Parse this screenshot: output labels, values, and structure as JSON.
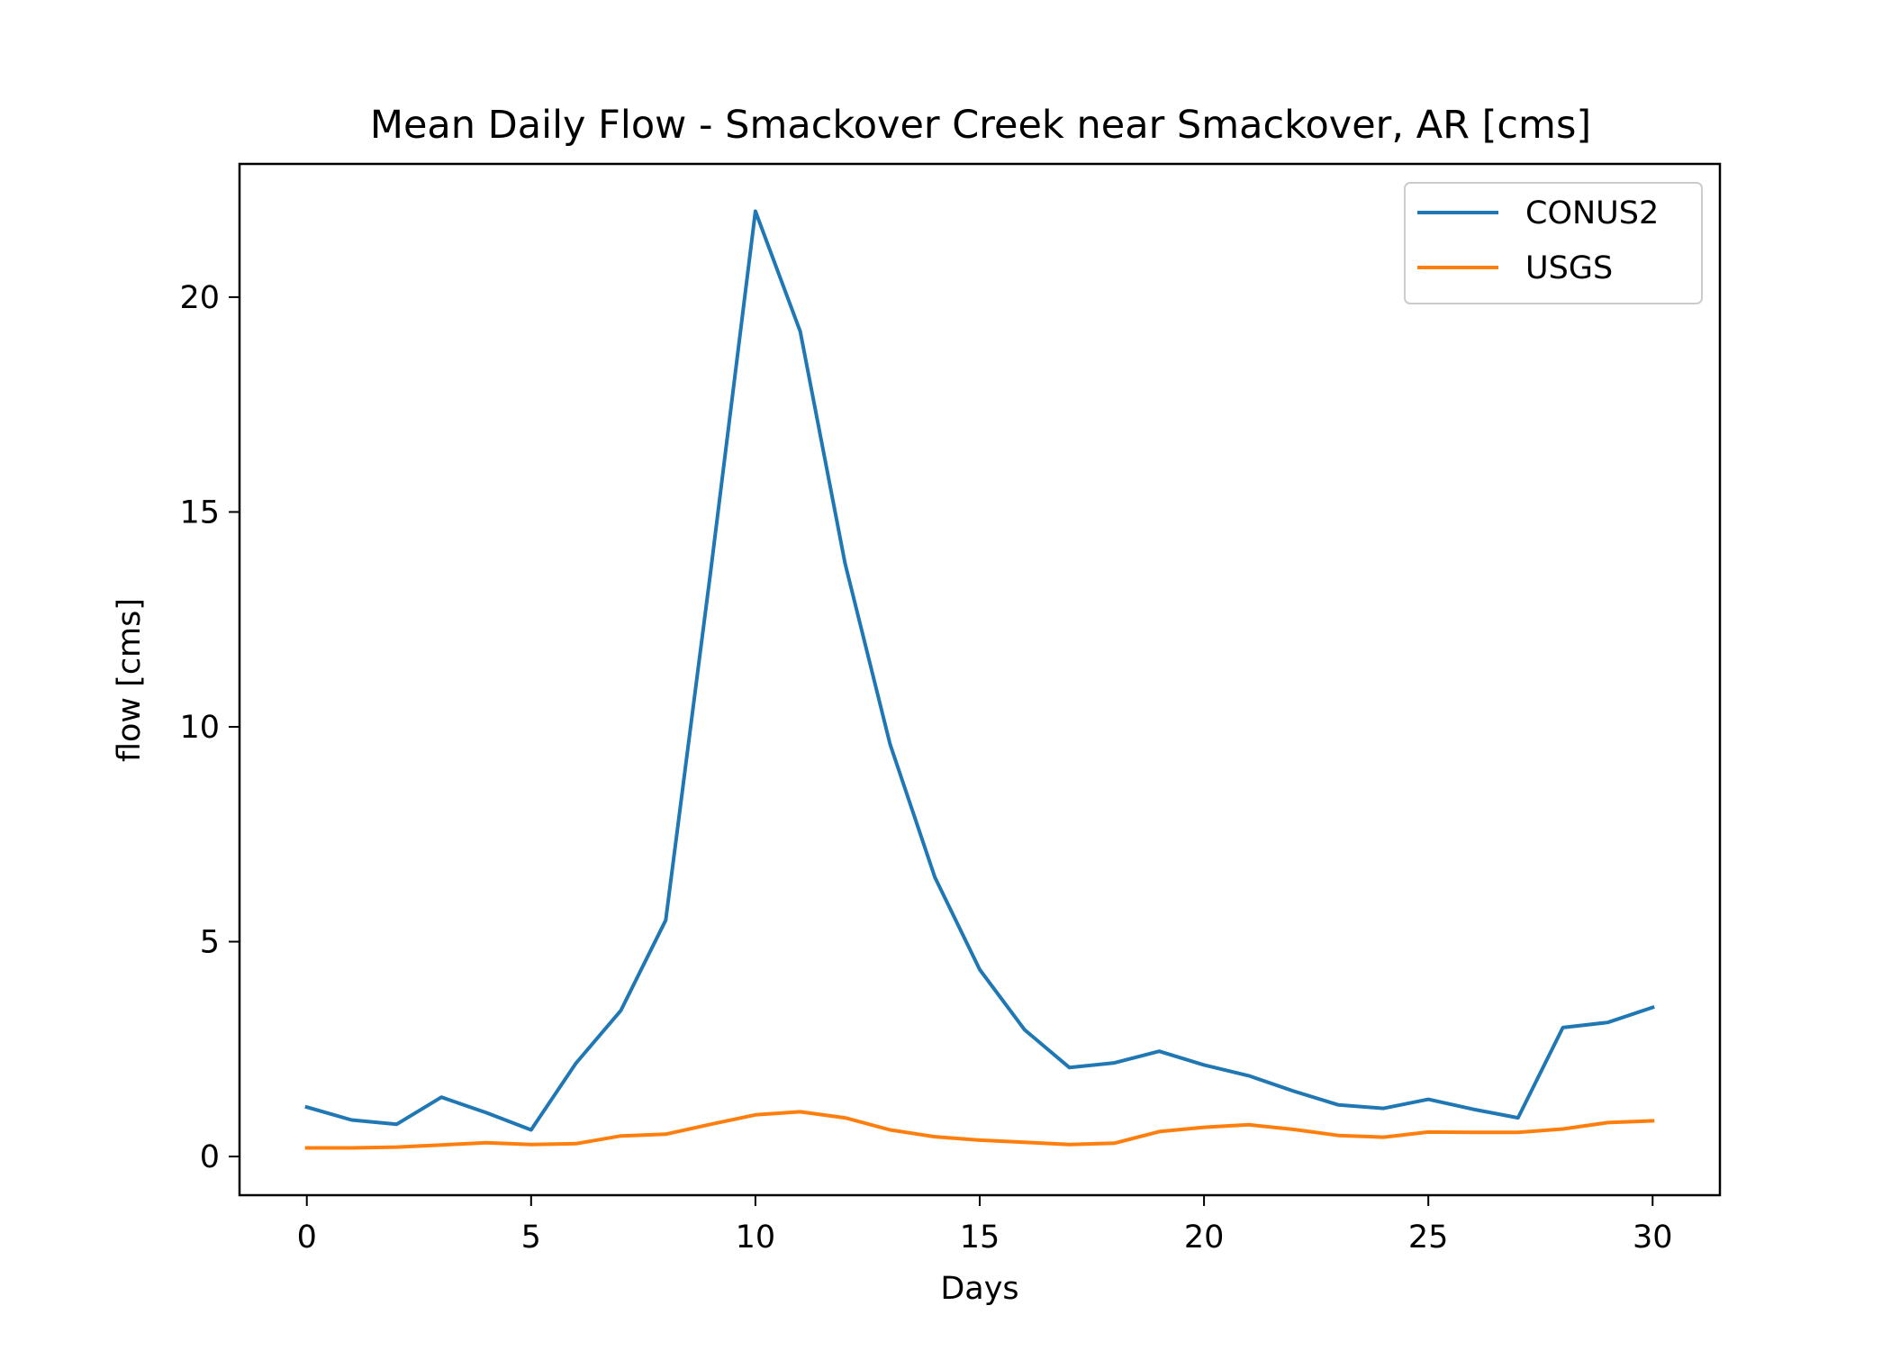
{
  "chart_data": {
    "type": "line",
    "title": "Mean Daily Flow - Smackover Creek near Smackover, AR [cms]",
    "xlabel": "Days",
    "ylabel": "flow [cms]",
    "xlim": [
      -1.5,
      31.5
    ],
    "ylim": [
      -0.9,
      23.1
    ],
    "xticks": [
      0,
      5,
      10,
      15,
      20,
      25,
      30
    ],
    "yticks": [
      0,
      5,
      10,
      15,
      20
    ],
    "grid": false,
    "legend_position": "upper right",
    "x": [
      0,
      1,
      2,
      3,
      4,
      5,
      6,
      7,
      8,
      9,
      10,
      11,
      12,
      13,
      14,
      15,
      16,
      17,
      18,
      19,
      20,
      21,
      22,
      23,
      24,
      25,
      26,
      27,
      28,
      29,
      30
    ],
    "series": [
      {
        "name": "CONUS2",
        "color": "#1f77b4",
        "values": [
          1.15,
          0.85,
          0.75,
          1.38,
          1.02,
          0.62,
          2.17,
          3.4,
          5.5,
          13.6,
          22.0,
          19.2,
          13.8,
          9.6,
          6.5,
          4.35,
          2.95,
          2.07,
          2.18,
          2.45,
          2.13,
          1.88,
          1.52,
          1.2,
          1.12,
          1.33,
          1.1,
          0.9,
          3.0,
          3.12,
          3.47
        ]
      },
      {
        "name": "USGS",
        "color": "#ff7f0e",
        "values": [
          0.2,
          0.2,
          0.22,
          0.27,
          0.32,
          0.28,
          0.3,
          0.48,
          0.52,
          0.75,
          0.97,
          1.04,
          0.9,
          0.62,
          0.46,
          0.38,
          0.33,
          0.28,
          0.31,
          0.58,
          0.68,
          0.74,
          0.63,
          0.49,
          0.45,
          0.57,
          0.56,
          0.56,
          0.64,
          0.79,
          0.83
        ]
      }
    ]
  }
}
